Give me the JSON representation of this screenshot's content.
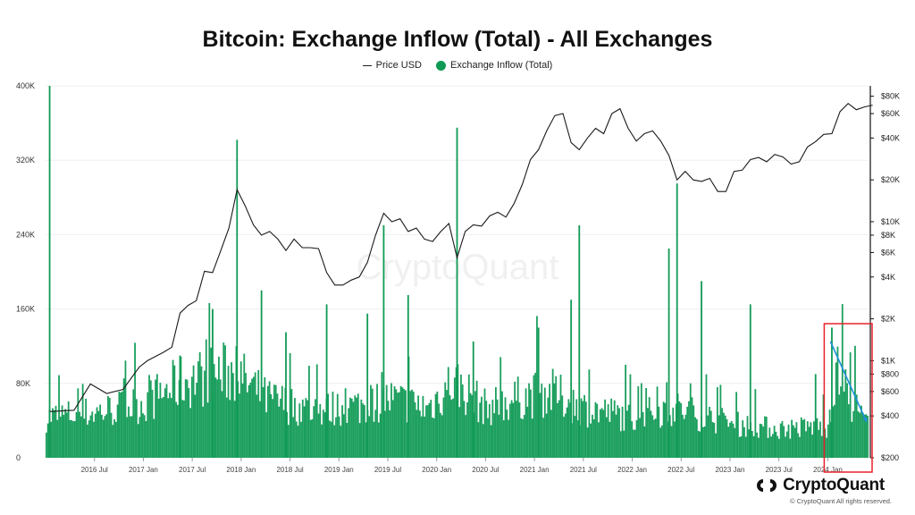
{
  "chart_data": {
    "type": "bar+line",
    "title": "Bitcoin: Exchange Inflow (Total) - All Exchanges",
    "legend": [
      {
        "name": "Price USD",
        "color": "#222222",
        "marker": "line"
      },
      {
        "name": "Exchange Inflow (Total)",
        "color": "#109a55",
        "marker": "dot"
      }
    ],
    "legend_placement": "top-center",
    "x_ticks": [
      "2016 Jul",
      "2017 Jan",
      "2017 Jul",
      "2018 Jan",
      "2018 Jul",
      "2019 Jan",
      "2019 Jul",
      "2020 Jan",
      "2020 Jul",
      "2021 Jan",
      "2021 Jul",
      "2022 Jan",
      "2022 Jul",
      "2023 Jan",
      "2023 Jul",
      "2024 Jan"
    ],
    "x_range": [
      "2016-01",
      "2024-06"
    ],
    "y_left": {
      "ticks": [
        "0",
        "80K",
        "160K",
        "240K",
        "320K",
        "400K"
      ],
      "range": [
        0,
        400000
      ]
    },
    "y_right": {
      "scale": "log",
      "ticks": [
        "$200",
        "$400",
        "$600",
        "$800",
        "$1K",
        "$2K",
        "$4K",
        "$6K",
        "$8K",
        "$10K",
        "$20K",
        "$40K",
        "$60K",
        "$80K"
      ],
      "range": [
        200,
        95000
      ]
    },
    "grid": true,
    "watermark": "CryptoQuant",
    "series": [
      {
        "name": "Price USD",
        "axis": "right",
        "points": [
          [
            "2016-01",
            430
          ],
          [
            "2016-04",
            440
          ],
          [
            "2016-06",
            680
          ],
          [
            "2016-08",
            580
          ],
          [
            "2016-10",
            620
          ],
          [
            "2016-12",
            900
          ],
          [
            "2017-01",
            1000
          ],
          [
            "2017-03",
            1150
          ],
          [
            "2017-04",
            1250
          ],
          [
            "2017-05",
            2200
          ],
          [
            "2017-06",
            2500
          ],
          [
            "2017-07",
            2700
          ],
          [
            "2017-08",
            4400
          ],
          [
            "2017-09",
            4300
          ],
          [
            "2017-10",
            6200
          ],
          [
            "2017-11",
            9000
          ],
          [
            "2017-12",
            17000
          ],
          [
            "2018-01",
            13000
          ],
          [
            "2018-02",
            9500
          ],
          [
            "2018-03",
            8000
          ],
          [
            "2018-04",
            8500
          ],
          [
            "2018-05",
            7500
          ],
          [
            "2018-06",
            6200
          ],
          [
            "2018-07",
            7500
          ],
          [
            "2018-08",
            6500
          ],
          [
            "2018-09",
            6500
          ],
          [
            "2018-10",
            6400
          ],
          [
            "2018-11",
            4300
          ],
          [
            "2018-12",
            3500
          ],
          [
            "2019-01",
            3500
          ],
          [
            "2019-02",
            3800
          ],
          [
            "2019-03",
            4000
          ],
          [
            "2019-04",
            5100
          ],
          [
            "2019-05",
            8000
          ],
          [
            "2019-06",
            11500
          ],
          [
            "2019-07",
            10000
          ],
          [
            "2019-08",
            10500
          ],
          [
            "2019-09",
            8500
          ],
          [
            "2019-10",
            9000
          ],
          [
            "2019-11",
            7500
          ],
          [
            "2019-12",
            7200
          ],
          [
            "2020-01",
            8500
          ],
          [
            "2020-02",
            9700
          ],
          [
            "2020-03",
            5500
          ],
          [
            "2020-04",
            8500
          ],
          [
            "2020-05",
            9500
          ],
          [
            "2020-06",
            9300
          ],
          [
            "2020-07",
            11000
          ],
          [
            "2020-08",
            11700
          ],
          [
            "2020-09",
            10800
          ],
          [
            "2020-10",
            13500
          ],
          [
            "2020-11",
            18500
          ],
          [
            "2020-12",
            28000
          ],
          [
            "2021-01",
            33000
          ],
          [
            "2021-02",
            45000
          ],
          [
            "2021-03",
            58000
          ],
          [
            "2021-04",
            60000
          ],
          [
            "2021-05",
            37000
          ],
          [
            "2021-06",
            33000
          ],
          [
            "2021-07",
            40000
          ],
          [
            "2021-08",
            47000
          ],
          [
            "2021-09",
            43000
          ],
          [
            "2021-10",
            60000
          ],
          [
            "2021-11",
            65000
          ],
          [
            "2021-12",
            47000
          ],
          [
            "2022-01",
            38000
          ],
          [
            "2022-02",
            43000
          ],
          [
            "2022-03",
            45000
          ],
          [
            "2022-04",
            38000
          ],
          [
            "2022-05",
            30000
          ],
          [
            "2022-06",
            20000
          ],
          [
            "2022-07",
            23000
          ],
          [
            "2022-08",
            20000
          ],
          [
            "2022-09",
            19500
          ],
          [
            "2022-10",
            20500
          ],
          [
            "2022-11",
            16500
          ],
          [
            "2022-12",
            16500
          ],
          [
            "2023-01",
            23000
          ],
          [
            "2023-02",
            23500
          ],
          [
            "2023-03",
            28000
          ],
          [
            "2023-04",
            29000
          ],
          [
            "2023-05",
            27000
          ],
          [
            "2023-06",
            30500
          ],
          [
            "2023-07",
            29200
          ],
          [
            "2023-08",
            26000
          ],
          [
            "2023-09",
            27000
          ],
          [
            "2023-10",
            34500
          ],
          [
            "2023-11",
            37700
          ],
          [
            "2023-12",
            42500
          ],
          [
            "2024-01",
            43000
          ],
          [
            "2024-02",
            62000
          ],
          [
            "2024-03",
            71000
          ],
          [
            "2024-04",
            64000
          ],
          [
            "2024-05",
            67000
          ],
          [
            "2024-06",
            69000
          ]
        ]
      },
      {
        "name": "Exchange Inflow (Total)",
        "axis": "left",
        "baseline": [
          [
            "2016-01",
            45000
          ],
          [
            "2016-07",
            50000
          ],
          [
            "2017-01",
            60000
          ],
          [
            "2017-06",
            85000
          ],
          [
            "2017-12",
            95000
          ],
          [
            "2018-04",
            65000
          ],
          [
            "2018-10",
            52000
          ],
          [
            "2019-04",
            58000
          ],
          [
            "2019-07",
            65000
          ],
          [
            "2019-12",
            55000
          ],
          [
            "2020-03",
            85000
          ],
          [
            "2020-07",
            55000
          ],
          [
            "2020-12",
            68000
          ],
          [
            "2021-03",
            72000
          ],
          [
            "2021-07",
            55000
          ],
          [
            "2022-01",
            45000
          ],
          [
            "2022-06",
            55000
          ],
          [
            "2023-01",
            38000
          ],
          [
            "2023-07",
            32000
          ],
          [
            "2024-01",
            35000
          ],
          [
            "2024-02",
            95000
          ],
          [
            "2024-04",
            60000
          ],
          [
            "2024-06",
            35000
          ]
        ],
        "peaks": [
          [
            "2016-01",
            400000
          ],
          [
            "2017-05",
            110000
          ],
          [
            "2017-09",
            160000
          ],
          [
            "2017-12",
            342000
          ],
          [
            "2018-03",
            180000
          ],
          [
            "2018-06",
            135000
          ],
          [
            "2018-11",
            165000
          ],
          [
            "2019-04",
            155000
          ],
          [
            "2019-06",
            250000
          ],
          [
            "2019-09",
            175000
          ],
          [
            "2020-03",
            355000
          ],
          [
            "2020-05",
            125000
          ],
          [
            "2021-01",
            140000
          ],
          [
            "2021-05",
            170000
          ],
          [
            "2021-06",
            250000
          ],
          [
            "2022-05",
            225000
          ],
          [
            "2022-06",
            295000
          ],
          [
            "2022-09",
            190000
          ],
          [
            "2023-03",
            165000
          ],
          [
            "2023-11",
            90000
          ],
          [
            "2024-01",
            140000
          ]
        ]
      }
    ],
    "annotations": [
      {
        "shape": "rectangle",
        "color": "#e8202a",
        "x_range": [
          "2024-01",
          "2024-06"
        ]
      },
      {
        "shape": "arrow",
        "color": "#1e90d8",
        "from": [
          "2024-01",
          125000
        ],
        "to": [
          "2024-06",
          38000
        ]
      }
    ]
  },
  "brand": {
    "name": "CryptoQuant",
    "copyright": "© CryptoQuant All rights reserved."
  }
}
